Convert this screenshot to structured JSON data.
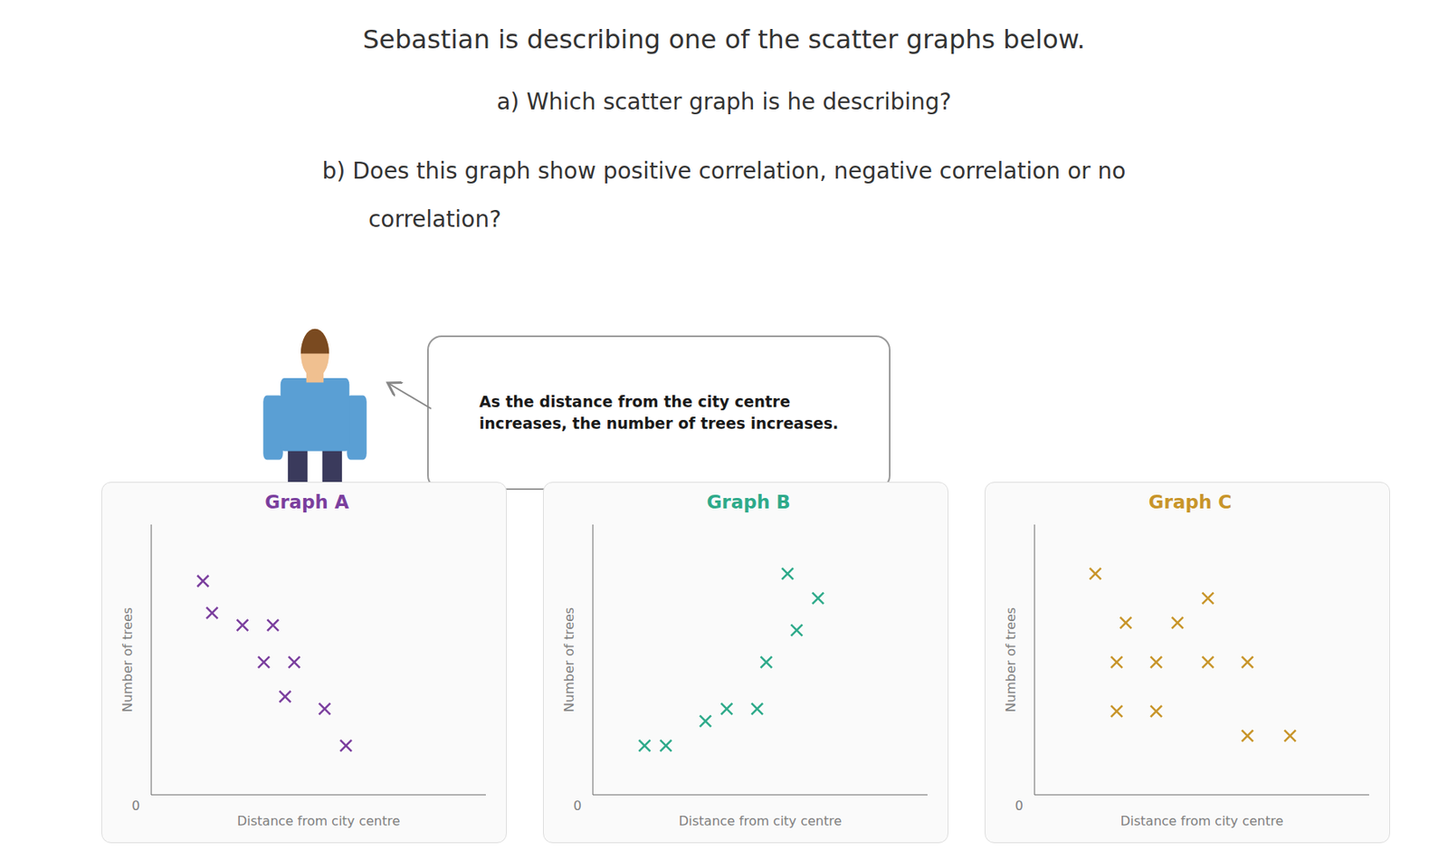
{
  "title": "Sebastian is describing one of the scatter graphs below.",
  "annotations": [
    "a)  Which scatter graph is he describing?",
    "b) Does this graph show positive correlation, negative correlation or no",
    "           correlation?",
    "As the distance from the city centre\nincreases, the number of trees increases."
  ],
  "chart_data": [
    {
      "type": "scatter",
      "title": "Graph A",
      "xlabel": "Distance from city centre",
      "ylabel": "Number of trees",
      "x": [
        0.15,
        0.18,
        0.28,
        0.38,
        0.35,
        0.45,
        0.42,
        0.55,
        0.62
      ],
      "values": [
        0.85,
        0.72,
        0.67,
        0.67,
        0.52,
        0.52,
        0.38,
        0.33,
        0.18
      ],
      "color": "#7b3f9e",
      "marker": "x",
      "xlim": [
        -0.02,
        1.08
      ],
      "ylim": [
        -0.02,
        1.08
      ],
      "xticks": [],
      "yticks": [],
      "tick_labels": false,
      "annotations": [
        "0"
      ]
    },
    {
      "type": "scatter",
      "title": "Graph B",
      "xlabel": "Distance from city centre",
      "ylabel": "Number of trees",
      "x": [
        0.15,
        0.22,
        0.35,
        0.42,
        0.52,
        0.55,
        0.65,
        0.72,
        0.62
      ],
      "values": [
        0.18,
        0.18,
        0.28,
        0.33,
        0.33,
        0.52,
        0.65,
        0.78,
        0.88
      ],
      "color": "#2eaa8a",
      "marker": "x",
      "xlim": [
        -0.02,
        1.08
      ],
      "ylim": [
        -0.02,
        1.08
      ],
      "xticks": [],
      "yticks": [],
      "tick_labels": false,
      "annotations": [
        "0"
      ]
    },
    {
      "type": "scatter",
      "title": "Graph C",
      "xlabel": "Distance from city centre",
      "ylabel": "Number of trees",
      "x": [
        0.18,
        0.55,
        0.28,
        0.45,
        0.25,
        0.38,
        0.55,
        0.68,
        0.25,
        0.38,
        0.68,
        0.82
      ],
      "values": [
        0.88,
        0.78,
        0.68,
        0.68,
        0.52,
        0.52,
        0.52,
        0.52,
        0.32,
        0.32,
        0.22,
        0.22
      ],
      "color": "#c8952a",
      "marker": "x",
      "xlim": [
        -0.02,
        1.08
      ],
      "ylim": [
        -0.02,
        1.08
      ],
      "xticks": [],
      "yticks": [],
      "tick_labels": false,
      "annotations": [
        "0"
      ]
    }
  ]
}
